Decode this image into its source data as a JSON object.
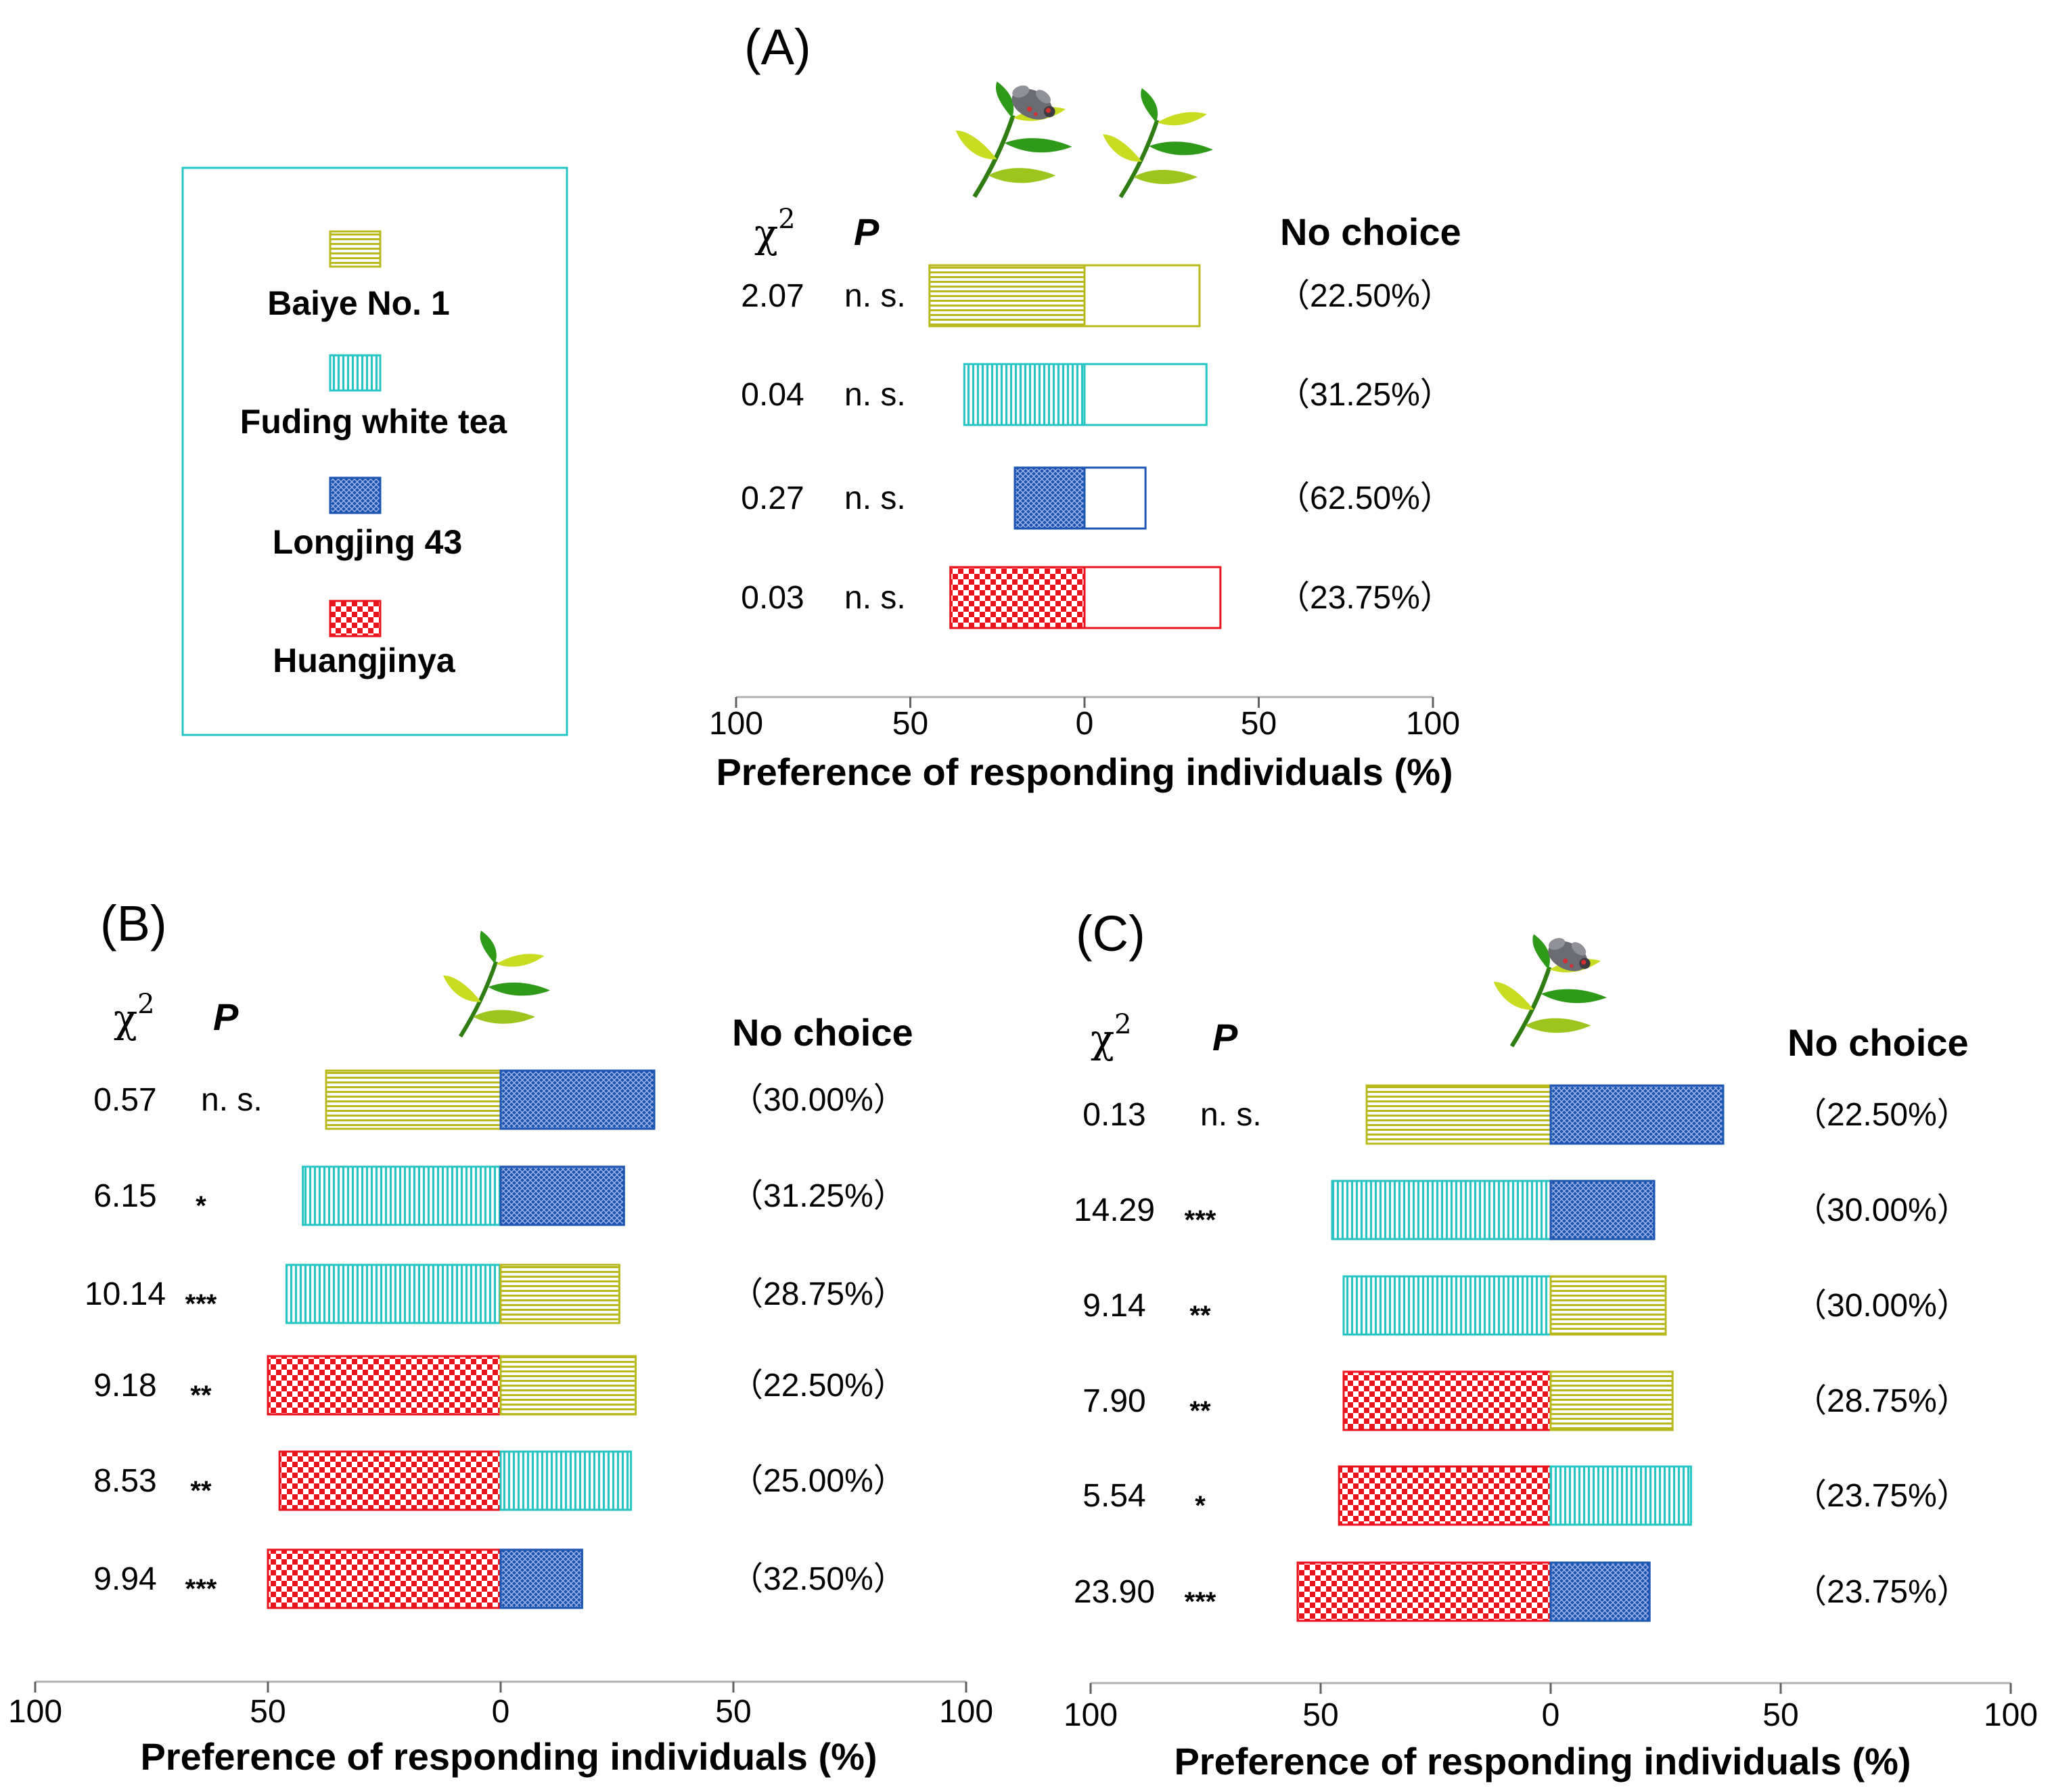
{
  "colors": {
    "baiye": "#b9b91e",
    "fuding": "#27c4c4",
    "longjing": "#1d55b0",
    "huangjinya": "#e8141e",
    "leaf_light": "#c9dc22",
    "leaf_dark": "#2f9a1a",
    "insect": "#6b6b72",
    "axis": "#b0b0b0",
    "legend_border": "#27c4c4"
  },
  "legend": {
    "items": [
      {
        "key": "baiye",
        "label": "Baiye No. 1",
        "icon": "horizontal-hatch-swatch"
      },
      {
        "key": "fuding",
        "label": "Fuding white tea",
        "icon": "vertical-hatch-swatch"
      },
      {
        "key": "longjing",
        "label": "Longjing 43",
        "icon": "crosshatch-swatch"
      },
      {
        "key": "huangjinya",
        "label": "Huangjinya",
        "icon": "checker-swatch"
      }
    ]
  },
  "headers": {
    "chi2": "χ",
    "chi2_sup": "2",
    "p": "P",
    "no_choice": "No choice"
  },
  "chart_data": [
    {
      "panel": "A",
      "title": "(A)",
      "type": "bar",
      "orientation": "horizontal-diverging",
      "header_icons": [
        "infested-tea-shoot-icon",
        "tea-shoot-icon"
      ],
      "xlabel": "Preference of responding individuals (%)",
      "xticks": [
        "100",
        "50",
        "0",
        "50",
        "100"
      ],
      "xlim": [
        -100,
        100
      ],
      "rows": [
        {
          "chi2": "2.07",
          "p": "n. s.",
          "left": {
            "cultivar": "baiye",
            "value": 44.5
          },
          "right": {
            "cultivar": "baiye",
            "value": 33.0,
            "hollow": true
          },
          "no_choice": "（22.50%）"
        },
        {
          "chi2": "0.04",
          "p": "n. s.",
          "left": {
            "cultivar": "fuding",
            "value": 34.5
          },
          "right": {
            "cultivar": "fuding",
            "value": 35.0,
            "hollow": true
          },
          "no_choice": "（31.25%）"
        },
        {
          "chi2": "0.27",
          "p": "n. s.",
          "left": {
            "cultivar": "longjing",
            "value": 20.0
          },
          "right": {
            "cultivar": "longjing",
            "value": 17.5,
            "hollow": true
          },
          "no_choice": "（62.50%）"
        },
        {
          "chi2": "0.03",
          "p": "n. s.",
          "left": {
            "cultivar": "huangjinya",
            "value": 38.5
          },
          "right": {
            "cultivar": "huangjinya",
            "value": 39.0,
            "hollow": true
          },
          "no_choice": "（23.75%）"
        }
      ]
    },
    {
      "panel": "B",
      "title": "(B)",
      "type": "bar",
      "orientation": "horizontal-diverging",
      "header_icons": [
        "tea-shoot-icon"
      ],
      "xlabel": "Preference of responding individuals (%)",
      "xticks": [
        "100",
        "50",
        "0",
        "50",
        "100"
      ],
      "xlim": [
        -100,
        100
      ],
      "rows": [
        {
          "chi2": "0.57",
          "p": "n. s.",
          "left": {
            "cultivar": "baiye",
            "value": 37.5
          },
          "right": {
            "cultivar": "longjing",
            "value": 33.0
          },
          "no_choice": "（30.00%）"
        },
        {
          "chi2": "6.15",
          "p": "*",
          "left": {
            "cultivar": "fuding",
            "value": 42.5
          },
          "right": {
            "cultivar": "longjing",
            "value": 26.5
          },
          "no_choice": "（31.25%）"
        },
        {
          "chi2": "10.14",
          "p": "***",
          "left": {
            "cultivar": "fuding",
            "value": 46.0
          },
          "right": {
            "cultivar": "baiye",
            "value": 25.5
          },
          "no_choice": "（28.75%）"
        },
        {
          "chi2": "9.18",
          "p": "**",
          "left": {
            "cultivar": "huangjinya",
            "value": 50.0
          },
          "right": {
            "cultivar": "baiye",
            "value": 29.0
          },
          "no_choice": "（22.50%）"
        },
        {
          "chi2": "8.53",
          "p": "**",
          "left": {
            "cultivar": "huangjinya",
            "value": 47.5
          },
          "right": {
            "cultivar": "fuding",
            "value": 28.0
          },
          "no_choice": "（25.00%）"
        },
        {
          "chi2": "9.94",
          "p": "***",
          "left": {
            "cultivar": "huangjinya",
            "value": 50.0
          },
          "right": {
            "cultivar": "longjing",
            "value": 17.5
          },
          "no_choice": "（32.50%）"
        }
      ]
    },
    {
      "panel": "C",
      "title": "(C)",
      "type": "bar",
      "orientation": "horizontal-diverging",
      "header_icons": [
        "infested-tea-shoot-icon"
      ],
      "xlabel": "Preference of responding individuals (%)",
      "xticks": [
        "100",
        "50",
        "0",
        "50",
        "100"
      ],
      "xlim": [
        -100,
        100
      ],
      "rows": [
        {
          "chi2": "0.13",
          "p": "n. s.",
          "left": {
            "cultivar": "baiye",
            "value": 40.0
          },
          "right": {
            "cultivar": "longjing",
            "value": 37.5
          },
          "no_choice": "（22.50%）"
        },
        {
          "chi2": "14.29",
          "p": "***",
          "left": {
            "cultivar": "fuding",
            "value": 47.5
          },
          "right": {
            "cultivar": "longjing",
            "value": 22.5
          },
          "no_choice": "（30.00%）"
        },
        {
          "chi2": "9.14",
          "p": "**",
          "left": {
            "cultivar": "fuding",
            "value": 45.0
          },
          "right": {
            "cultivar": "baiye",
            "value": 25.0
          },
          "no_choice": "（30.00%）"
        },
        {
          "chi2": "7.90",
          "p": "**",
          "left": {
            "cultivar": "huangjinya",
            "value": 45.0
          },
          "right": {
            "cultivar": "baiye",
            "value": 26.5
          },
          "no_choice": "（28.75%）"
        },
        {
          "chi2": "5.54",
          "p": "*",
          "left": {
            "cultivar": "huangjinya",
            "value": 46.0
          },
          "right": {
            "cultivar": "fuding",
            "value": 30.5
          },
          "no_choice": "（23.75%）"
        },
        {
          "chi2": "23.90",
          "p": "***",
          "left": {
            "cultivar": "huangjinya",
            "value": 55.0
          },
          "right": {
            "cultivar": "longjing",
            "value": 21.5
          },
          "no_choice": "（23.75%）"
        }
      ]
    }
  ]
}
